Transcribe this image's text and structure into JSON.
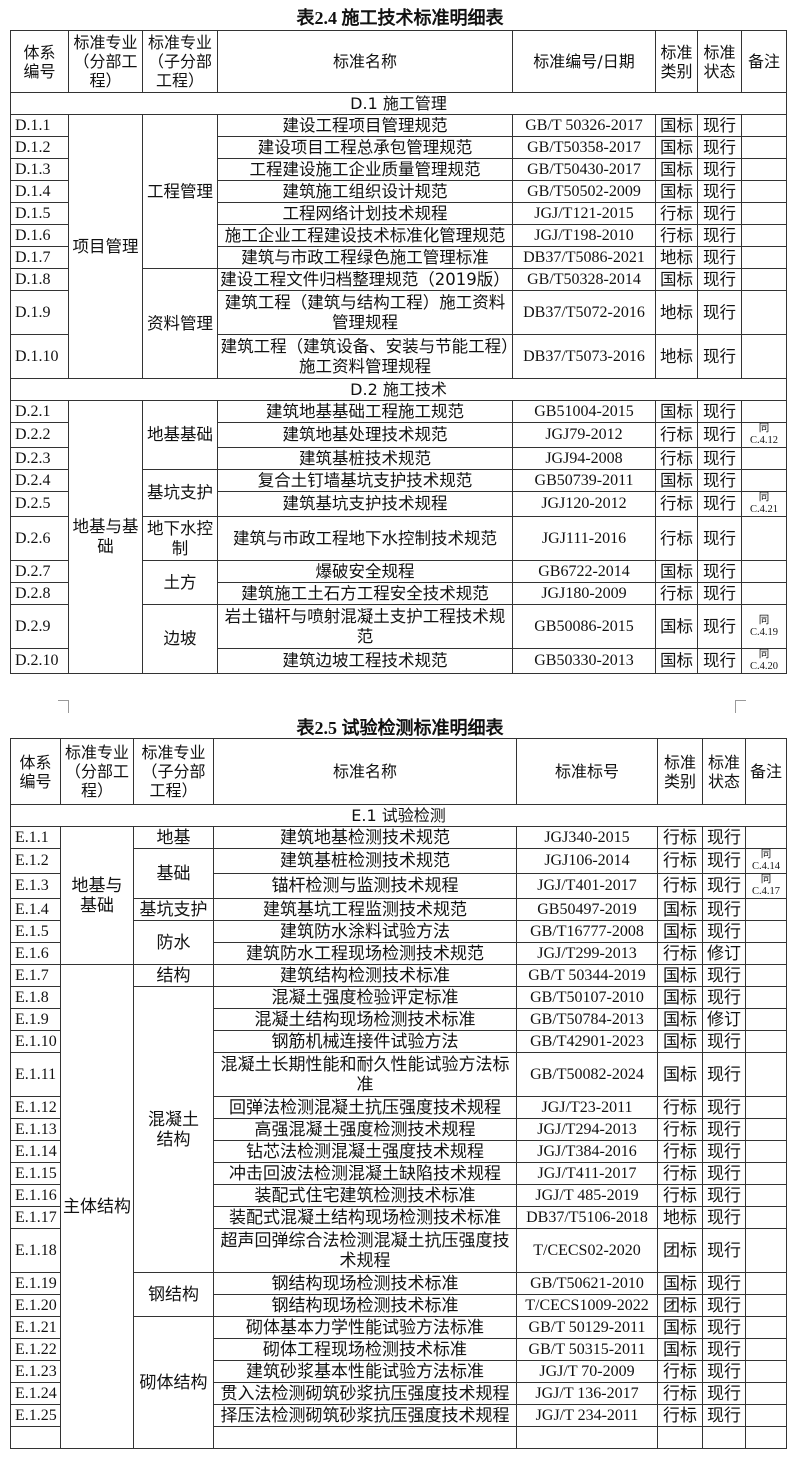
{
  "table1": {
    "title": "表2.4  施工技术标准明细表",
    "headers": [
      "体系\n编号",
      "标准专业\n（分部工\n程）",
      "标准专业\n（子分部\n工程）",
      "标准名称",
      "标准编号/日期",
      "标准\n类别",
      "标准\n状态",
      "备注"
    ],
    "sections": [
      {
        "title": "D.1  施工管理",
        "rows": [
          {
            "code": "D.1.1",
            "div": "项目管理",
            "sub": "工程管理",
            "name": "建设工程项目管理规范",
            "num": "GB/T 50326-2017",
            "type": "国标",
            "status": "现行",
            "remark": ""
          },
          {
            "code": "D.1.2",
            "div": "项目管理",
            "sub": "工程管理",
            "name": "建设项目工程总承包管理规范",
            "num": "GB/T50358-2017",
            "type": "国标",
            "status": "现行",
            "remark": ""
          },
          {
            "code": "D.1.3",
            "div": "项目管理",
            "sub": "工程管理",
            "name": "工程建设施工企业质量管理规范",
            "num": "GB/T50430-2017",
            "type": "国标",
            "status": "现行",
            "remark": ""
          },
          {
            "code": "D.1.4",
            "div": "项目管理",
            "sub": "工程管理",
            "name": "建筑施工组织设计规范",
            "num": "GB/T50502-2009",
            "type": "国标",
            "status": "现行",
            "remark": ""
          },
          {
            "code": "D.1.5",
            "div": "项目管理",
            "sub": "工程管理",
            "name": "工程网络计划技术规程",
            "num": "JGJ/T121-2015",
            "type": "行标",
            "status": "现行",
            "remark": ""
          },
          {
            "code": "D.1.6",
            "div": "项目管理",
            "sub": "工程管理",
            "name": "施工企业工程建设技术标准化管理规范",
            "num": "JGJ/T198-2010",
            "type": "行标",
            "status": "现行",
            "remark": ""
          },
          {
            "code": "D.1.7",
            "div": "项目管理",
            "sub": "工程管理",
            "name": "建筑与市政工程绿色施工管理标准",
            "num": "DB37/T5086-2021",
            "type": "地标",
            "status": "现行",
            "remark": ""
          },
          {
            "code": "D.1.8",
            "div": "项目管理",
            "sub": "资料管理",
            "name": "建设工程文件归档整理规范（2019版）",
            "num": "GB/T50328-2014",
            "type": "国标",
            "status": "现行",
            "remark": ""
          },
          {
            "code": "D.1.9",
            "div": "项目管理",
            "sub": "资料管理",
            "name": "建筑工程（建筑与结构工程）施工资料管理规程",
            "num": "DB37/T5072-2016",
            "type": "地标",
            "status": "现行",
            "remark": ""
          },
          {
            "code": "D.1.10",
            "div": "项目管理",
            "sub": "资料管理",
            "name": "建筑工程（建筑设备、安装与节能工程）施工资料管理规程",
            "num": "DB37/T5073-2016",
            "type": "地标",
            "status": "现行",
            "remark": ""
          }
        ]
      },
      {
        "title": "D.2  施工技术",
        "rows": [
          {
            "code": "D.2.1",
            "div": "地基与基础",
            "sub": "地基基础",
            "name": "建筑地基基础工程施工规范",
            "num": "GB51004-2015",
            "type": "国标",
            "status": "现行",
            "remark": ""
          },
          {
            "code": "D.2.2",
            "div": "地基与基础",
            "sub": "地基基础",
            "name": "建筑地基处理技术规范",
            "num": "JGJ79-2012",
            "type": "行标",
            "status": "现行",
            "remark": "同\nC.4.12"
          },
          {
            "code": "D.2.3",
            "div": "地基与基础",
            "sub": "地基基础",
            "name": "建筑基桩技术规范",
            "num": "JGJ94-2008",
            "type": "行标",
            "status": "现行",
            "remark": ""
          },
          {
            "code": "D.2.4",
            "div": "地基与基础",
            "sub": "基坑支护",
            "name": "复合土钉墙基坑支护技术规范",
            "num": "GB50739-2011",
            "type": "国标",
            "status": "现行",
            "remark": ""
          },
          {
            "code": "D.2.5",
            "div": "地基与基础",
            "sub": "基坑支护",
            "name": "建筑基坑支护技术规程",
            "num": "JGJ120-2012",
            "type": "行标",
            "status": "现行",
            "remark": "同\nC.4.21"
          },
          {
            "code": "D.2.6",
            "div": "地基与基础",
            "sub": "地下水控制",
            "name": "建筑与市政工程地下水控制技术规范",
            "num": "JGJ111-2016",
            "type": "行标",
            "status": "现行",
            "remark": "",
            "tall": true
          },
          {
            "code": "D.2.7",
            "div": "地基与基础",
            "sub": "土方",
            "name": "爆破安全规程",
            "num": "GB6722-2014",
            "type": "国标",
            "status": "现行",
            "remark": ""
          },
          {
            "code": "D.2.8",
            "div": "地基与基础",
            "sub": "土方",
            "name": "建筑施工土石方工程安全技术规范",
            "num": "JGJ180-2009",
            "type": "行标",
            "status": "现行",
            "remark": ""
          },
          {
            "code": "D.2.9",
            "div": "地基与基础",
            "sub": "边坡",
            "name": "岩土锚杆与喷射混凝土支护工程技术规范",
            "num": "GB50086-2015",
            "type": "国标",
            "status": "现行",
            "remark": "同\nC.4.19"
          },
          {
            "code": "D.2.10",
            "div": "地基与基础",
            "sub": "边坡",
            "name": "建筑边坡工程技术规范",
            "num": "GB50330-2013",
            "type": "国标",
            "status": "现行",
            "remark": "同\nC.4.20"
          }
        ]
      }
    ]
  },
  "table2": {
    "title": "表2.5  试验检测标准明细表",
    "headers": [
      "体系\n编号",
      "标准专业\n（分部工\n程）",
      "标准专业\n（子分部\n工程）",
      "标准名称",
      "标准标号",
      "标准\n类别",
      "标准\n状态",
      "备注"
    ],
    "sections": [
      {
        "title": "E.1  试验检测",
        "rows": [
          {
            "code": "E.1.1",
            "div": "地基与\n基础",
            "sub": "地基",
            "name": "建筑地基检测技术规范",
            "num": "JGJ340-2015",
            "type": "行标",
            "status": "现行",
            "remark": ""
          },
          {
            "code": "E.1.2",
            "div": "地基与\n基础",
            "sub": "基础",
            "name": "建筑基桩检测技术规范",
            "num": "JGJ106-2014",
            "type": "行标",
            "status": "现行",
            "remark": "同\nC.4.14"
          },
          {
            "code": "E.1.3",
            "div": "地基与\n基础",
            "sub": "基础",
            "name": "锚杆检测与监测技术规程",
            "num": "JGJ/T401-2017",
            "type": "行标",
            "status": "现行",
            "remark": "同\nC.4.17"
          },
          {
            "code": "E.1.4",
            "div": "地基与\n基础",
            "sub": "基坑支护",
            "name": "建筑基坑工程监测技术规范",
            "num": "GB50497-2019",
            "type": "国标",
            "status": "现行",
            "remark": ""
          },
          {
            "code": "E.1.5",
            "div": "地基与\n基础",
            "sub": "防水",
            "name": "建筑防水涂料试验方法",
            "num": "GB/T16777-2008",
            "type": "国标",
            "status": "现行",
            "remark": ""
          },
          {
            "code": "E.1.6",
            "div": "地基与\n基础",
            "sub": "防水",
            "name": "建筑防水工程现场检测技术规范",
            "num": "JGJ/T299-2013",
            "type": "行标",
            "status": "修订",
            "remark": ""
          },
          {
            "code": "E.1.7",
            "div": "主体结构",
            "sub": "结构",
            "name": "建筑结构检测技术标准",
            "num": "GB/T 50344-2019",
            "type": "国标",
            "status": "现行",
            "remark": ""
          },
          {
            "code": "E.1.8",
            "div": "主体结构",
            "sub": "混凝土\n结构",
            "name": "混凝土强度检验评定标准",
            "num": "GB/T50107-2010",
            "type": "国标",
            "status": "现行",
            "remark": ""
          },
          {
            "code": "E.1.9",
            "div": "主体结构",
            "sub": "混凝土\n结构",
            "name": "混凝土结构现场检测技术标准",
            "num": "GB/T50784-2013",
            "type": "国标",
            "status": "修订",
            "remark": ""
          },
          {
            "code": "E.1.10",
            "div": "主体结构",
            "sub": "混凝土\n结构",
            "name": "钢筋机械连接件试验方法",
            "num": "GB/T42901-2023",
            "type": "国标",
            "status": "现行",
            "remark": ""
          },
          {
            "code": "E.1.11",
            "div": "主体结构",
            "sub": "混凝土\n结构",
            "name": "混凝土长期性能和耐久性能试验方法标\n准",
            "num": "GB/T50082-2024",
            "type": "国标",
            "status": "现行",
            "remark": ""
          },
          {
            "code": "E.1.12",
            "div": "主体结构",
            "sub": "混凝土\n结构",
            "name": "回弹法检测混凝土抗压强度技术规程",
            "num": "JGJ/T23-2011",
            "type": "行标",
            "status": "现行",
            "remark": ""
          },
          {
            "code": "E.1.13",
            "div": "主体结构",
            "sub": "混凝土\n结构",
            "name": "高强混凝土强度检测技术规程",
            "num": "JGJ/T294-2013",
            "type": "行标",
            "status": "现行",
            "remark": ""
          },
          {
            "code": "E.1.14",
            "div": "主体结构",
            "sub": "混凝土\n结构",
            "name": "钻芯法检测混凝土强度技术规程",
            "num": "JGJ/T384-2016",
            "type": "行标",
            "status": "现行",
            "remark": ""
          },
          {
            "code": "E.1.15",
            "div": "主体结构",
            "sub": "混凝土\n结构",
            "name": "冲击回波法检测混凝土缺陷技术规程",
            "num": "JGJ/T411-2017",
            "type": "行标",
            "status": "现行",
            "remark": ""
          },
          {
            "code": "E.1.16",
            "div": "主体结构",
            "sub": "混凝土\n结构",
            "name": "装配式住宅建筑检测技术标准",
            "num": "JGJ/T 485-2019",
            "type": "行标",
            "status": "现行",
            "remark": ""
          },
          {
            "code": "E.1.17",
            "div": "主体结构",
            "sub": "混凝土\n结构",
            "name": "装配式混凝土结构现场检测技术标准",
            "num": "DB37/T5106-2018",
            "type": "地标",
            "status": "现行",
            "remark": ""
          },
          {
            "code": "E.1.18",
            "div": "主体结构",
            "sub": "混凝土\n结构",
            "name": "超声回弹综合法检测混凝土抗压强度技术规程",
            "num": "T/CECS02-2020",
            "type": "团标",
            "status": "现行",
            "remark": ""
          },
          {
            "code": "E.1.19",
            "div": "主体结构",
            "sub": "钢结构",
            "name": "钢结构现场检测技术标准",
            "num": "GB/T50621-2010",
            "type": "国标",
            "status": "现行",
            "remark": ""
          },
          {
            "code": "E.1.20",
            "div": "主体结构",
            "sub": "钢结构",
            "name": "钢结构现场检测技术标准",
            "num": "T/CECS1009-2022",
            "type": "团标",
            "status": "现行",
            "remark": ""
          },
          {
            "code": "E.1.21",
            "div": "主体结构",
            "sub": "砌体结构",
            "name": "砌体基本力学性能试验方法标准",
            "num": "GB/T 50129-2011",
            "type": "国标",
            "status": "现行",
            "remark": ""
          },
          {
            "code": "E.1.22",
            "div": "主体结构",
            "sub": "砌体结构",
            "name": "砌体工程现场检测技术标准",
            "num": "GB/T 50315-2011",
            "type": "国标",
            "status": "现行",
            "remark": ""
          },
          {
            "code": "E.1.23",
            "div": "主体结构",
            "sub": "砌体结构",
            "name": "建筑砂浆基本性能试验方法标准",
            "num": "JGJ/T 70-2009",
            "type": "行标",
            "status": "现行",
            "remark": ""
          },
          {
            "code": "E.1.24",
            "div": "主体结构",
            "sub": "砌体结构",
            "name": "贯入法检测砌筑砂浆抗压强度技术规程",
            "num": "JGJ/T 136-2017",
            "type": "行标",
            "status": "现行",
            "remark": ""
          },
          {
            "code": "E.1.25",
            "div": "主体结构",
            "sub": "砌体结构",
            "name": "择压法检测砌筑砂浆抗压强度技术规程",
            "num": "JGJ/T 234-2011",
            "type": "行标",
            "status": "现行",
            "remark": ""
          }
        ]
      }
    ]
  }
}
